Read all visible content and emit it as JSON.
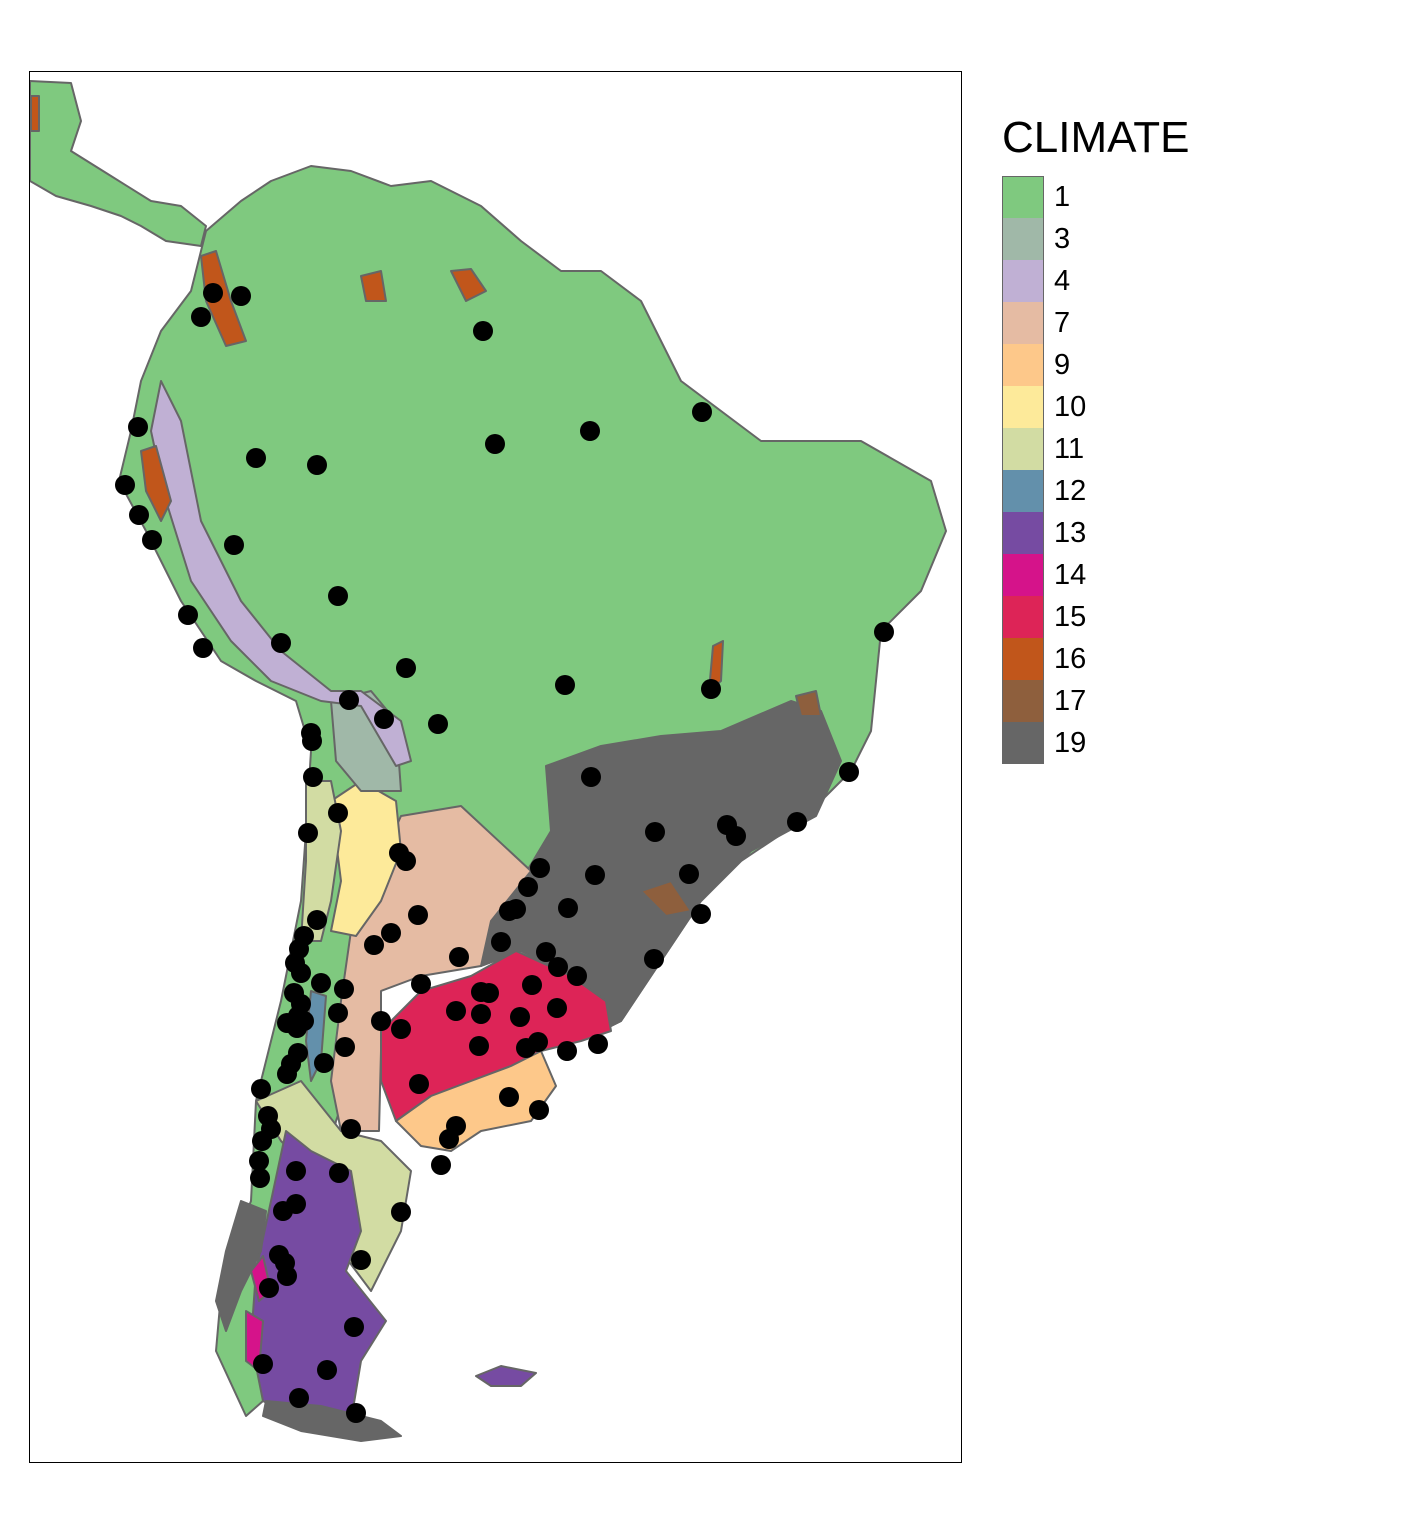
{
  "legend": {
    "title": "CLIMATE",
    "items": [
      {
        "label": "1",
        "color": "#7fc97f"
      },
      {
        "label": "3",
        "color": "#a0b8a8"
      },
      {
        "label": "4",
        "color": "#c0b0d4"
      },
      {
        "label": "7",
        "color": "#e5bba3"
      },
      {
        "label": "9",
        "color": "#fdc88a"
      },
      {
        "label": "10",
        "color": "#fdea9a"
      },
      {
        "label": "11",
        "color": "#d2dca3"
      },
      {
        "label": "12",
        "color": "#6390ab"
      },
      {
        "label": "13",
        "color": "#764ba2"
      },
      {
        "label": "14",
        "color": "#d5138a"
      },
      {
        "label": "15",
        "color": "#dd2457"
      },
      {
        "label": "16",
        "color": "#c1561b"
      },
      {
        "label": "17",
        "color": "#8e5f3d"
      },
      {
        "label": "19",
        "color": "#666666"
      }
    ]
  },
  "colors": {
    "border": "#666666",
    "point": "#000000",
    "frame": "#000000"
  }
}
